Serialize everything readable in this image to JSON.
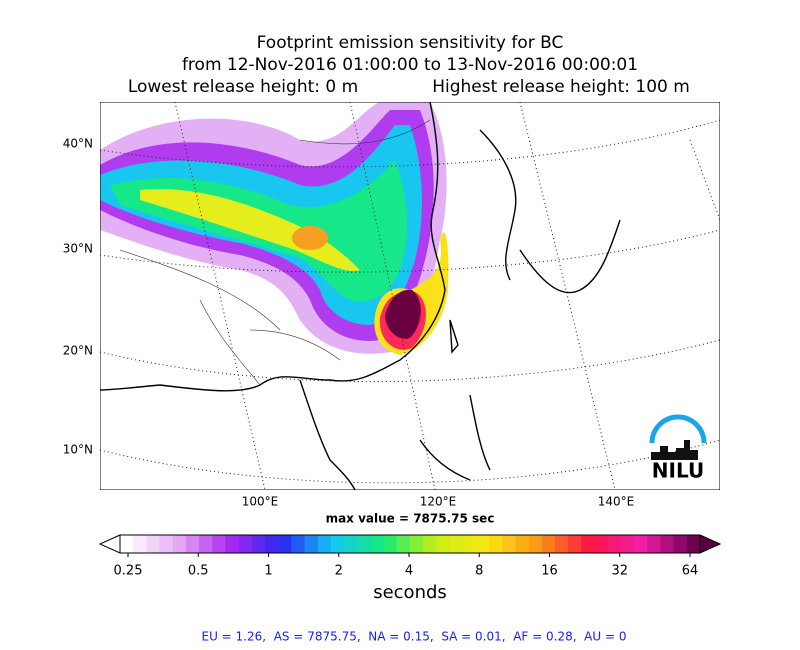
{
  "title": {
    "line1": "Footprint emission sensitivity for BC",
    "line2": "from 12-Nov-2016 01:00:00 to 13-Nov-2016 00:00:01",
    "line3_left": "Lowest release height: 0 m",
    "line3_right": "Highest release height: 100 m"
  },
  "map": {
    "lat_labels": [
      "40°N",
      "30°N",
      "20°N",
      "10°N"
    ],
    "lon_labels": [
      "100°E",
      "120°E",
      "140°E"
    ],
    "logo": "NILU"
  },
  "max_value": "max value = 7875.75 sec",
  "colorbar": {
    "ticks": [
      "0.25",
      "0.5",
      "1",
      "2",
      "4",
      "8",
      "16",
      "32",
      "64"
    ],
    "label": "seconds"
  },
  "footer": "EU = 1.26,  AS = 7875.75,  NA = 0.15,  SA = 0.01,  AF = 0.28,  AU = 0"
}
